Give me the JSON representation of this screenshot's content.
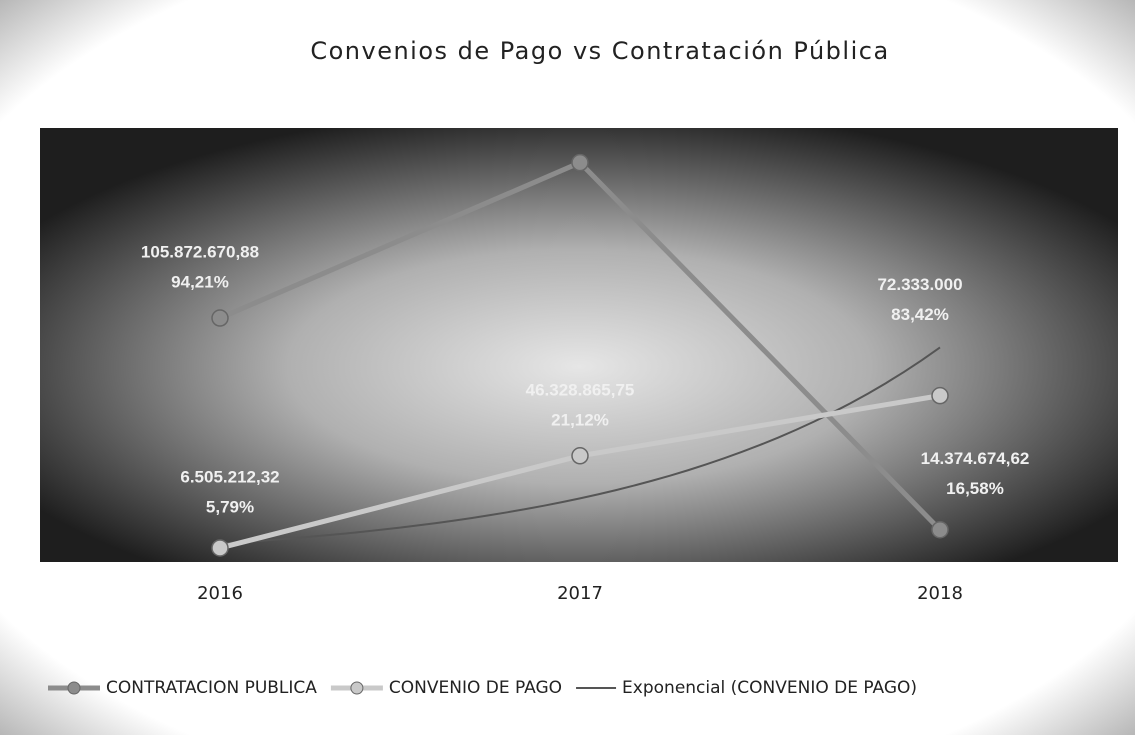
{
  "chart_data": {
    "type": "line",
    "title": "Convenios de Pago vs Contratación Pública",
    "categories": [
      "2016",
      "2017",
      "2018"
    ],
    "ylim": [
      0,
      188000000
    ],
    "series": [
      {
        "name": "CONTRATACION PUBLICA",
        "color": "#8c8c8c",
        "values": [
          105872670.88,
          173030000,
          14374674.62
        ],
        "value_labels": [
          "105.872.670,88",
          null,
          "14.374.674,62"
        ],
        "share_labels": [
          "94,21%",
          null,
          "16,58%"
        ]
      },
      {
        "name": "CONVENIO DE PAGO",
        "color": "#c9c9c9",
        "values": [
          6505212.32,
          46328865.75,
          72333000
        ],
        "value_labels": [
          "6.505.212,32",
          "46.328.865,75",
          "72.333.000"
        ],
        "share_labels": [
          "5,79%",
          "21,12%",
          "83,42%"
        ]
      }
    ],
    "trendline": {
      "name": "Exponencial (CONVENIO DE PAGO)",
      "kind": "exponential",
      "series": 1,
      "color": "#555555"
    },
    "legend": "bottom"
  }
}
